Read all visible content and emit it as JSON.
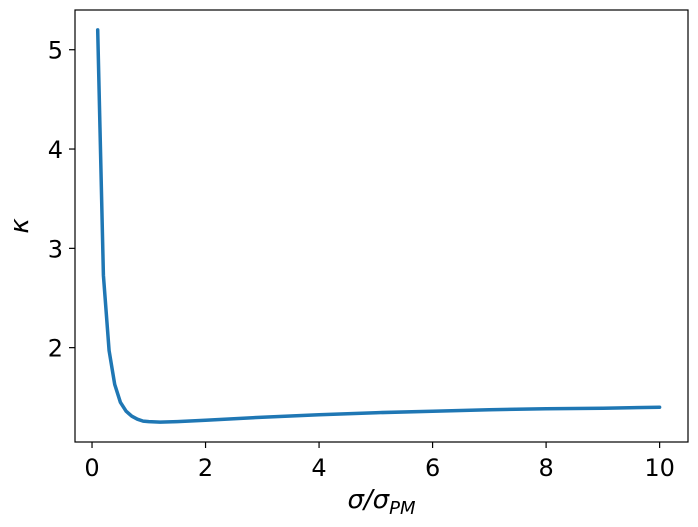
{
  "chart_data": {
    "type": "line",
    "title": "",
    "xlabel": {
      "main": "σ/σ",
      "sub": "PM"
    },
    "ylabel": "κ",
    "xlim": [
      -0.3,
      10.5
    ],
    "ylim": [
      1.05,
      5.4
    ],
    "xticks": [
      0,
      2,
      4,
      6,
      8,
      10
    ],
    "yticks": [
      2,
      3,
      4,
      5
    ],
    "grid": false,
    "legend": "none",
    "series": [
      {
        "color": "#1f77b4",
        "x": [
          0.1,
          0.2,
          0.3,
          0.4,
          0.5,
          0.6,
          0.7,
          0.8,
          0.9,
          1.0,
          1.2,
          1.5,
          2.0,
          2.5,
          3.0,
          4.0,
          5.0,
          6.0,
          7.0,
          8.0,
          9.0,
          10.0
        ],
        "y": [
          5.2,
          2.73,
          1.97,
          1.63,
          1.45,
          1.36,
          1.31,
          1.28,
          1.26,
          1.255,
          1.25,
          1.255,
          1.27,
          1.285,
          1.3,
          1.325,
          1.345,
          1.36,
          1.375,
          1.385,
          1.39,
          1.4
        ]
      }
    ]
  }
}
